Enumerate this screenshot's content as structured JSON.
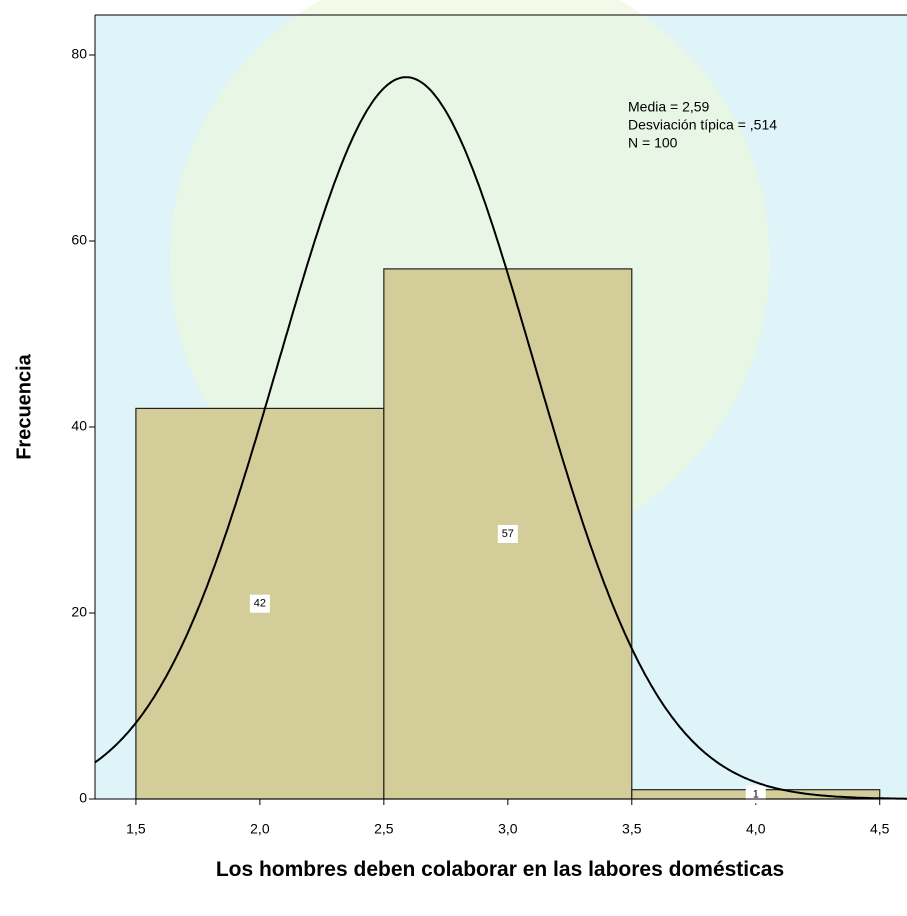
{
  "chart_data": {
    "type": "histogram",
    "xlabel": "Los hombres deben colaborar en las labores domésticas",
    "ylabel": "Frecuencia",
    "bins": [
      1.5,
      2.5,
      3.5,
      4.5
    ],
    "values": [
      42,
      57,
      1
    ],
    "color": "#d3ce99",
    "curve_color": "#000000",
    "stats": {
      "mean": {
        "value": 2.59,
        "label": "Media = 2,59"
      },
      "sd": {
        "value": 0.514,
        "label": "Desviación típica = ,514"
      },
      "n": {
        "value": 100,
        "label": "N = 100"
      }
    },
    "xlim": [
      1.335,
      4.61
    ],
    "ylim": [
      0,
      84.3
    ],
    "xticks": [
      {
        "value": 1.5,
        "label": "1,5"
      },
      {
        "value": 2.0,
        "label": "2,0"
      },
      {
        "value": 2.5,
        "label": "2,5"
      },
      {
        "value": 3.0,
        "label": "3,0"
      },
      {
        "value": 3.5,
        "label": "3,5"
      },
      {
        "value": 4.0,
        "label": "4,0"
      },
      {
        "value": 4.5,
        "label": "4,5"
      }
    ],
    "yticks": [
      0,
      20,
      40,
      60,
      80
    ]
  }
}
